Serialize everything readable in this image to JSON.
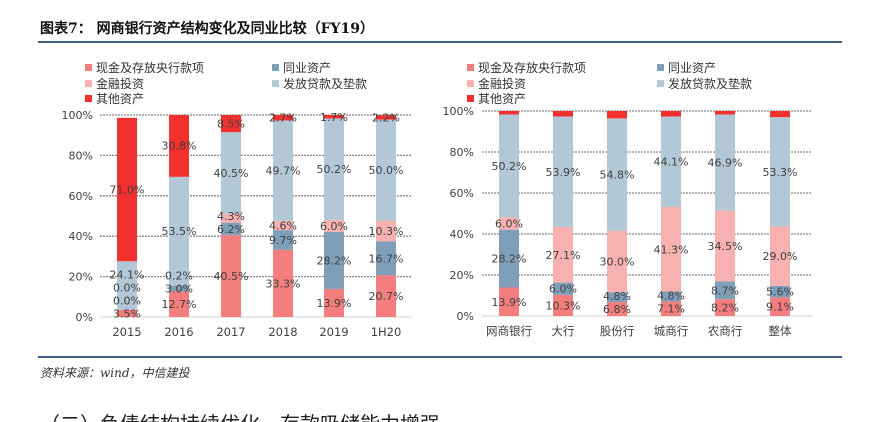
{
  "figure": {
    "title": "图表7：  网商银行资产结构变化及同业比较（FY19）",
    "source": "资料来源：wind，中信建投",
    "next_heading": "（二）负债结构持续优化，存款吸储能力增强"
  },
  "colors": {
    "cash": "#f47d7d",
    "interbank": "#7f9fb9",
    "investment": "#f7b1b1",
    "loans": "#b3c8d7",
    "other": "#f2312f",
    "grid": "#888888",
    "text": "#404040"
  },
  "chart_data": [
    {
      "type": "bar",
      "stacked": true,
      "categories": [
        "2015",
        "2016",
        "2017",
        "2018",
        "2019",
        "1H20"
      ],
      "ylim": [
        0,
        100
      ],
      "yticks": [
        "0%",
        "20%",
        "40%",
        "60%",
        "80%",
        "100%"
      ],
      "grid": true,
      "legend_placement": "top",
      "series": [
        {
          "name": "现金及存放央行款项",
          "key": "cash",
          "values": [
            3.5,
            12.7,
            40.5,
            33.3,
            13.9,
            20.7
          ],
          "labels": [
            "3.5%",
            "12.7%",
            "40.5%",
            "33.3%",
            "13.9%",
            "20.7%"
          ]
        },
        {
          "name": "同业资产",
          "key": "interbank",
          "values": [
            0.0,
            3.0,
            6.2,
            9.7,
            28.2,
            16.7
          ],
          "labels": [
            "0.0%",
            "3.0%",
            "6.2%",
            "9.7%",
            "28.2%",
            "16.7%"
          ]
        },
        {
          "name": "金融投资",
          "key": "investment",
          "values": [
            0.0,
            0.2,
            4.3,
            4.6,
            6.0,
            10.3
          ],
          "labels": [
            "0.0%",
            "0.2%",
            "4.3%",
            "4.6%",
            "6.0%",
            "10.3%"
          ]
        },
        {
          "name": "发放贷款及垫款",
          "key": "loans",
          "values": [
            24.1,
            53.5,
            40.5,
            49.7,
            50.2,
            50.0
          ],
          "labels": [
            "24.1%",
            "53.5%",
            "40.5%",
            "49.7%",
            "50.2%",
            "50.0%"
          ]
        },
        {
          "name": "其他资产",
          "key": "other",
          "values": [
            71.0,
            30.8,
            8.5,
            2.7,
            1.7,
            2.2
          ],
          "labels": [
            "71.0%",
            "30.8%",
            "8.5%",
            "2.7%",
            "1.7%",
            "2.2%"
          ]
        }
      ]
    },
    {
      "type": "bar",
      "stacked": true,
      "categories": [
        "网商银行",
        "大行",
        "股份行",
        "城商行",
        "农商行",
        "整体"
      ],
      "ylim": [
        0,
        100
      ],
      "yticks": [
        "0%",
        "20%",
        "40%",
        "60%",
        "80%",
        "100%"
      ],
      "grid": true,
      "legend_placement": "top",
      "series": [
        {
          "name": "现金及存放央行款项",
          "key": "cash",
          "values": [
            13.9,
            10.3,
            6.8,
            7.1,
            8.2,
            9.1
          ],
          "labels": [
            "13.9%",
            "10.3%",
            "6.8%",
            "7.1%",
            "8.2%",
            "9.1%"
          ]
        },
        {
          "name": "同业资产",
          "key": "interbank",
          "values": [
            28.2,
            6.0,
            4.8,
            4.8,
            8.7,
            5.6
          ],
          "labels": [
            "28.2%",
            "6.0%",
            "4.8%",
            "4.8%",
            "8.7%",
            "5.6%"
          ]
        },
        {
          "name": "金融投资",
          "key": "investment",
          "values": [
            6.0,
            27.1,
            30.0,
            41.3,
            34.5,
            29.0
          ],
          "labels": [
            "6.0%",
            "27.1%",
            "30.0%",
            "41.3%",
            "34.5%",
            "29.0%"
          ]
        },
        {
          "name": "发放贷款及垫款",
          "key": "loans",
          "values": [
            50.2,
            53.9,
            54.8,
            44.1,
            46.9,
            53.3
          ],
          "labels": [
            "50.2%",
            "53.9%",
            "54.8%",
            "44.1%",
            "46.9%",
            "53.3%"
          ]
        },
        {
          "name": "其他资产",
          "key": "other",
          "values": [
            1.7,
            2.7,
            3.6,
            2.7,
            1.7,
            3.0
          ]
        }
      ]
    }
  ]
}
